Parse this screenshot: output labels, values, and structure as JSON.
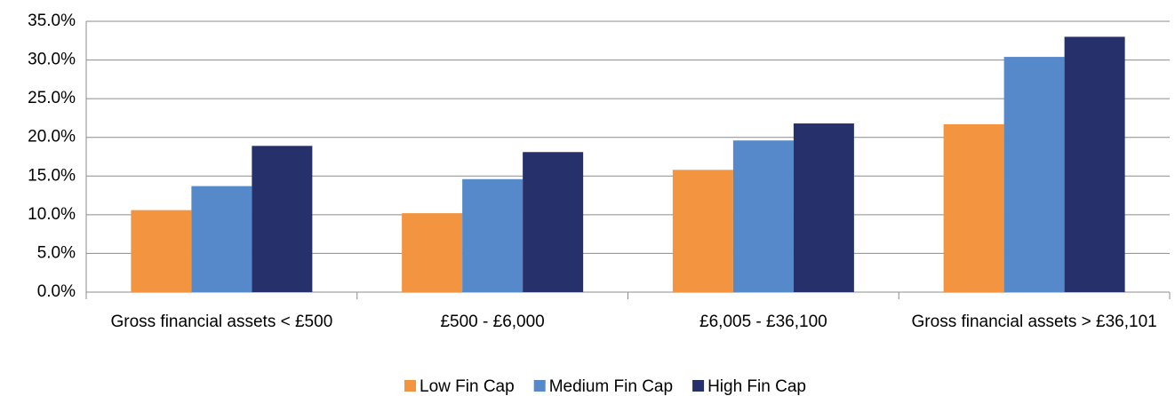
{
  "chart_data": {
    "type": "bar",
    "categories": [
      "Gross financial assets < £500",
      "£500 - £6,000",
      "£6,005 - £36,100",
      "Gross financial assets > £36,101"
    ],
    "series": [
      {
        "name": "Low Fin Cap",
        "color": "#f39540",
        "values": [
          10.6,
          10.2,
          15.8,
          21.7
        ]
      },
      {
        "name": "Medium Fin Cap",
        "color": "#5689c9",
        "values": [
          13.7,
          14.6,
          19.6,
          30.4
        ]
      },
      {
        "name": "High Fin Cap",
        "color": "#26316b",
        "values": [
          18.9,
          18.1,
          21.8,
          33.0
        ]
      }
    ],
    "ylim": [
      0,
      35
    ],
    "yticks": [
      {
        "value": 0,
        "label": "0.0%"
      },
      {
        "value": 5,
        "label": "5.0%"
      },
      {
        "value": 10,
        "label": "10.0%"
      },
      {
        "value": 15,
        "label": "15.0%"
      },
      {
        "value": 20,
        "label": "20.0%"
      },
      {
        "value": 25,
        "label": "25.0%"
      },
      {
        "value": 30,
        "label": "30.0%"
      },
      {
        "value": 35,
        "label": "35.0%"
      }
    ],
    "grid": true,
    "legend": "bottom"
  }
}
